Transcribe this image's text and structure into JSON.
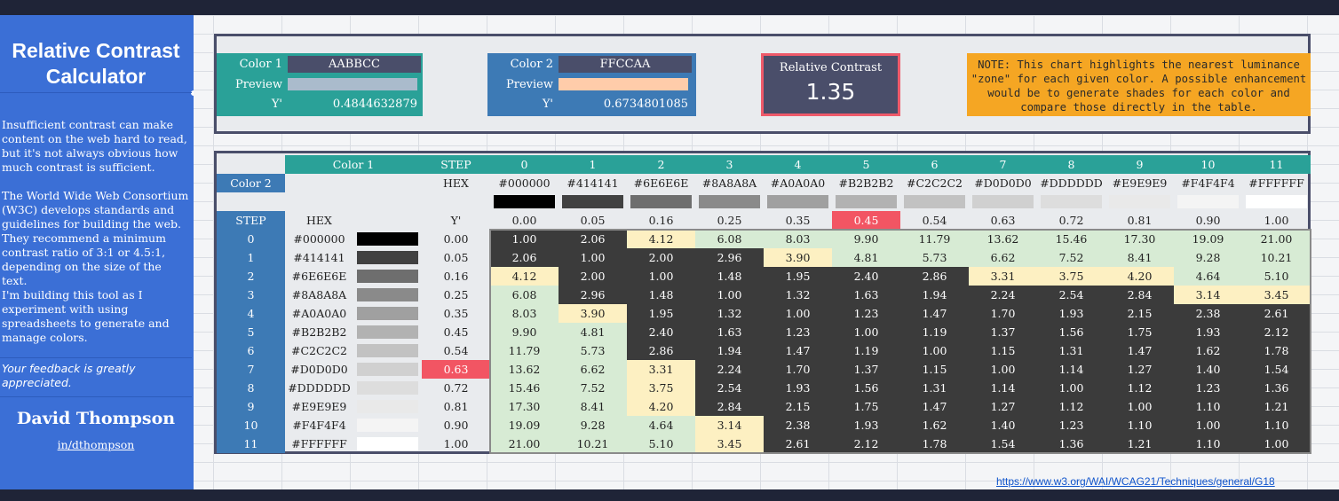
{
  "sidebar": {
    "title_line1": "Relative Contrast",
    "title_line2": "Calculator",
    "p1": "Insufficient contrast can make content on the web hard to read, but it's not always obvious how much contrast is sufficient.",
    "p2": "The World Wide Web Consortium (W3C) develops standards and guidelines for building the web. They recommend a minimum contrast ratio of 3:1 or 4.5:1, depending on the size of the text.",
    "p3": "I'm building this tool as I experiment with using spreadsheets to generate and manage colors.",
    "feedback": "Your feedback is greatly appreciated.",
    "author": "David Thompson",
    "handle": "in/dthompson"
  },
  "calc": {
    "color1": {
      "label": "Color 1",
      "hex": "AABBCC",
      "preview_label": "Preview",
      "preview_color": "#AABBCC",
      "y_label": "Y'",
      "y": "0.4844632879"
    },
    "color2": {
      "label": "Color 2",
      "hex": "FFCCAA",
      "preview_label": "Preview",
      "preview_color": "#FFCCAA",
      "y_label": "Y'",
      "y": "0.6734801085"
    },
    "relative": {
      "label": "Relative Contrast",
      "value": "1.35"
    },
    "note": "NOTE: This chart highlights the nearest luminance \"zone\" for each given color. A possible enhancement would be to generate shades for each color and compare those directly in the table."
  },
  "grid": {
    "color1_label": "Color 1",
    "color2_label": "Color 2",
    "step_label": "STEP",
    "hex_label": "HEX",
    "y_label": "Y'",
    "steps": [
      "0",
      "1",
      "2",
      "3",
      "4",
      "5",
      "6",
      "7",
      "8",
      "9",
      "10",
      "11"
    ],
    "hex": [
      "#000000",
      "#414141",
      "#6E6E6E",
      "#8A8A8A",
      "#A0A0A0",
      "#B2B2B2",
      "#C2C2C2",
      "#D0D0D0",
      "#DDDDDD",
      "#E9E9E9",
      "#F4F4F4",
      "#FFFFFF"
    ],
    "y": [
      "0.00",
      "0.05",
      "0.16",
      "0.25",
      "0.35",
      "0.45",
      "0.54",
      "0.63",
      "0.72",
      "0.81",
      "0.90",
      "1.00"
    ],
    "col_highlight": 5,
    "row_highlight": 7,
    "matrix": [
      [
        "1.00",
        "2.06",
        "4.12",
        "6.08",
        "8.03",
        "9.90",
        "11.79",
        "13.62",
        "15.46",
        "17.30",
        "19.09",
        "21.00"
      ],
      [
        "2.06",
        "1.00",
        "2.00",
        "2.96",
        "3.90",
        "4.81",
        "5.73",
        "6.62",
        "7.52",
        "8.41",
        "9.28",
        "10.21"
      ],
      [
        "4.12",
        "2.00",
        "1.00",
        "1.48",
        "1.95",
        "2.40",
        "2.86",
        "3.31",
        "3.75",
        "4.20",
        "4.64",
        "5.10"
      ],
      [
        "6.08",
        "2.96",
        "1.48",
        "1.00",
        "1.32",
        "1.63",
        "1.94",
        "2.24",
        "2.54",
        "2.84",
        "3.14",
        "3.45"
      ],
      [
        "8.03",
        "3.90",
        "1.95",
        "1.32",
        "1.00",
        "1.23",
        "1.47",
        "1.70",
        "1.93",
        "2.15",
        "2.38",
        "2.61"
      ],
      [
        "9.90",
        "4.81",
        "2.40",
        "1.63",
        "1.23",
        "1.00",
        "1.19",
        "1.37",
        "1.56",
        "1.75",
        "1.93",
        "2.12"
      ],
      [
        "11.79",
        "5.73",
        "2.86",
        "1.94",
        "1.47",
        "1.19",
        "1.00",
        "1.15",
        "1.31",
        "1.47",
        "1.62",
        "1.78"
      ],
      [
        "13.62",
        "6.62",
        "3.31",
        "2.24",
        "1.70",
        "1.37",
        "1.15",
        "1.00",
        "1.14",
        "1.27",
        "1.40",
        "1.54"
      ],
      [
        "15.46",
        "7.52",
        "3.75",
        "2.54",
        "1.93",
        "1.56",
        "1.31",
        "1.14",
        "1.00",
        "1.12",
        "1.23",
        "1.36"
      ],
      [
        "17.30",
        "8.41",
        "4.20",
        "2.84",
        "2.15",
        "1.75",
        "1.47",
        "1.27",
        "1.12",
        "1.00",
        "1.10",
        "1.21"
      ],
      [
        "19.09",
        "9.28",
        "4.64",
        "3.14",
        "2.38",
        "1.93",
        "1.62",
        "1.40",
        "1.23",
        "1.10",
        "1.00",
        "1.10"
      ],
      [
        "21.00",
        "10.21",
        "5.10",
        "3.45",
        "2.61",
        "2.12",
        "1.78",
        "1.54",
        "1.36",
        "1.21",
        "1.10",
        "1.00"
      ]
    ]
  },
  "colors": {
    "teal": "#2aa198",
    "blue": "#3d7ab5",
    "slate": "#4a4e6a",
    "dark": "#3b3b3b",
    "green": "#d7ebd4",
    "yellow": "#fdf0c2",
    "red": "#f25563",
    "orange": "#f5a623",
    "sidebar": "#3b6fd6"
  },
  "link": "https://www.w3.org/WAI/WCAG21/Techniques/general/G18"
}
